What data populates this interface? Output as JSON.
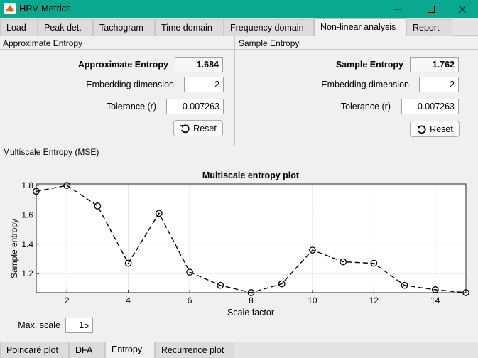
{
  "window": {
    "title": "HRV Metrics",
    "minimize": "—",
    "maximize": "☐",
    "close": "✕"
  },
  "top_tabs": [
    "Load",
    "Peak det.",
    "Tachogram",
    "Time domain",
    "Frequency domain",
    "Non-linear analysis",
    "Report"
  ],
  "apen": {
    "panel_title": "Approximate Entropy",
    "value_label": "Approximate Entropy",
    "value": "1.684",
    "dim_label": "Embedding dimension",
    "dim_value": "2",
    "tol_label": "Tolerance (r)",
    "tol_value": "0.007263",
    "reset_label": "Reset"
  },
  "sampen": {
    "panel_title": "Sample Entropy",
    "value_label": "Sample Entropy",
    "value": "1.762",
    "dim_label": "Embedding dimension",
    "dim_value": "2",
    "tol_label": "Tolerance (r)",
    "tol_value": "0.007263",
    "reset_label": "Reset"
  },
  "mse": {
    "panel_title": "Multiscale Entropy (MSE)",
    "max_scale_label": "Max. scale",
    "max_scale_value": "15"
  },
  "bottom_tabs": [
    "Poincaré plot",
    "DFA",
    "Entropy",
    "Recurrence plot"
  ],
  "chart_data": {
    "type": "line",
    "title": "Multiscale entropy plot",
    "xlabel": "Scale factor",
    "ylabel": "Sample entropy",
    "x": [
      1,
      2,
      3,
      4,
      5,
      6,
      7,
      8,
      9,
      10,
      11,
      12,
      13,
      14,
      15
    ],
    "values": [
      1.76,
      1.8,
      1.66,
      1.27,
      1.61,
      1.21,
      1.12,
      1.07,
      1.13,
      1.36,
      1.28,
      1.27,
      1.12,
      1.09,
      1.07
    ],
    "xlim": [
      1,
      15
    ],
    "ylim": [
      1.07,
      1.81
    ],
    "xticks": [
      "2",
      "4",
      "6",
      "8",
      "10",
      "12",
      "14"
    ],
    "yticks": [
      "1.2",
      "1.4",
      "1.6",
      "1.8"
    ],
    "grid": true,
    "line_style": "dashed",
    "marker": "circle",
    "line_color": "#000000"
  }
}
